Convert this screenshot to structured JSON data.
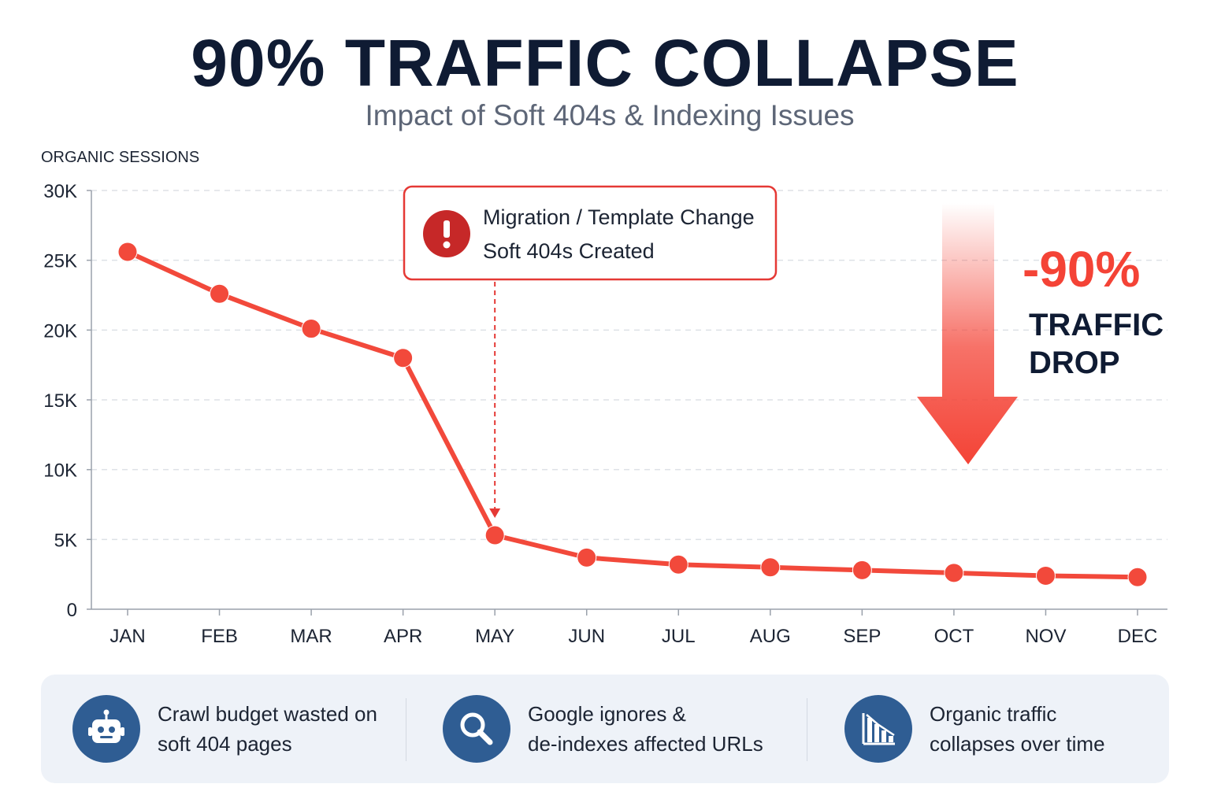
{
  "header": {
    "title": "90% TRAFFIC COLLAPSE",
    "subtitle": "Impact of Soft 404s & Indexing Issues"
  },
  "chart_data": {
    "type": "line",
    "ylabel": "ORGANIC SESSIONS",
    "ylim": [
      0,
      30000
    ],
    "yticks": [
      {
        "value": 30000,
        "label": "30K"
      },
      {
        "value": 25000,
        "label": "25K"
      },
      {
        "value": 20000,
        "label": "20K"
      },
      {
        "value": 15000,
        "label": "15K"
      },
      {
        "value": 10000,
        "label": "10K"
      },
      {
        "value": 5000,
        "label": "5K"
      },
      {
        "value": 0,
        "label": "0"
      }
    ],
    "categories": [
      "JAN",
      "FEB",
      "MAR",
      "APR",
      "MAY",
      "JUN",
      "JUL",
      "AUG",
      "SEP",
      "OCT",
      "NOV",
      "DEC"
    ],
    "series": [
      {
        "values": [
          25600,
          22600,
          20100,
          18000,
          5300,
          3700,
          3200,
          3000,
          2800,
          2600,
          2400,
          2300
        ]
      }
    ],
    "grid": true,
    "line_color": "#f2493b",
    "annotation": {
      "category": "MAY",
      "line1": "Migration / Template Change",
      "line2": "Soft 404s Created",
      "icon": "alert-icon",
      "border_color": "#e53935",
      "icon_color": "#c62828"
    },
    "callout": {
      "value": "-90%",
      "line1": "TRAFFIC",
      "line2": "DROP",
      "color": "#f44336",
      "icon": "down-arrow-icon"
    }
  },
  "footer": {
    "items": [
      {
        "icon": "robot-icon",
        "text": "Crawl budget wasted on\nsoft 404 pages"
      },
      {
        "icon": "search-icon",
        "text": "Google ignores &\nde-indexes affected URLs"
      },
      {
        "icon": "declining-bar-chart-icon",
        "text": "Organic traffic\ncollapses over time"
      }
    ],
    "icon_color": "#2f5d93"
  }
}
